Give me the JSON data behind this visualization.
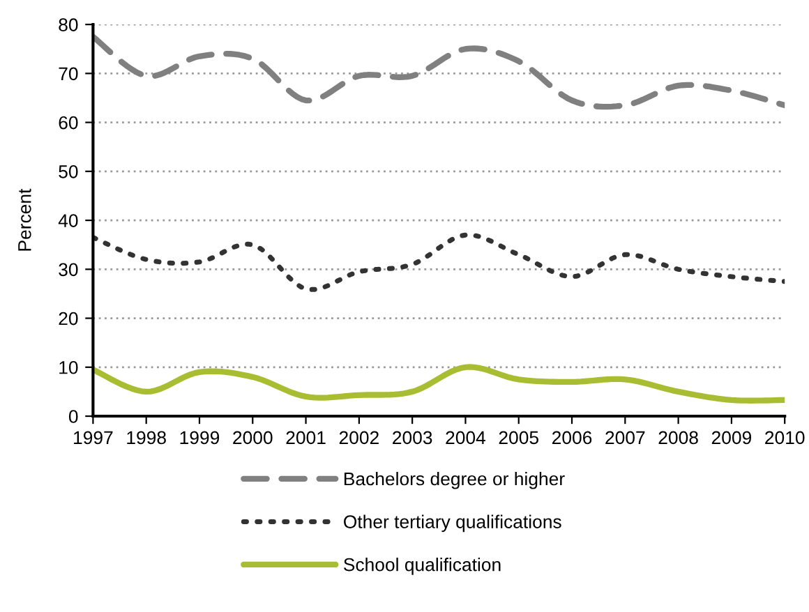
{
  "chart_data": {
    "type": "line",
    "ylabel": "Percent",
    "x": [
      1997,
      1998,
      1999,
      2000,
      2001,
      2002,
      2003,
      2004,
      2005,
      2006,
      2007,
      2008,
      2009,
      2010
    ],
    "xlim": [
      1997,
      2010
    ],
    "xticks": [
      1997,
      1998,
      1999,
      2000,
      2001,
      2002,
      2003,
      2004,
      2005,
      2006,
      2007,
      2008,
      2009,
      2010
    ],
    "ylim": [
      0,
      80
    ],
    "yticks": [
      0,
      10,
      20,
      30,
      40,
      50,
      60,
      70,
      80
    ],
    "grid": "y",
    "legend": "bottom",
    "series": [
      {
        "name": "Bachelors degree or higher",
        "color": "#808080",
        "line_style": "dashed",
        "values": [
          77.5,
          69.5,
          73.5,
          73,
          64.5,
          69.5,
          69.5,
          75,
          72.5,
          64.5,
          63.5,
          67.5,
          66.5,
          63.5
        ]
      },
      {
        "name": "Other tertiary qualifications",
        "color": "#333333",
        "line_style": "dotted",
        "values": [
          36.5,
          32,
          31.5,
          35,
          26,
          29.5,
          31,
          37,
          33,
          28.5,
          33,
          30,
          28.5,
          27.5
        ]
      },
      {
        "name": "School qualification",
        "color": "#a8bd32",
        "line_style": "solid",
        "values": [
          9.5,
          5,
          9,
          8,
          4,
          4.3,
          5,
          10,
          7.5,
          7,
          7.5,
          5,
          3.3,
          3.3
        ]
      }
    ]
  }
}
